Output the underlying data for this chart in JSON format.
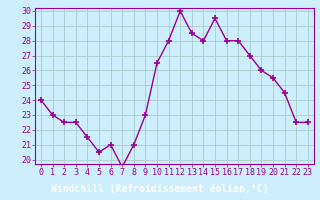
{
  "x": [
    0,
    1,
    2,
    3,
    4,
    5,
    6,
    7,
    8,
    9,
    10,
    11,
    12,
    13,
    14,
    15,
    16,
    17,
    18,
    19,
    20,
    21,
    22,
    23
  ],
  "y": [
    24,
    23,
    22.5,
    22.5,
    21.5,
    20.5,
    21,
    19.5,
    21,
    23,
    26.5,
    28,
    30,
    28.5,
    28,
    29.5,
    28,
    28,
    27,
    26,
    25.5,
    24.5,
    22.5,
    22.5
  ],
  "line_color": "#990099",
  "marker": "+",
  "marker_size": 5,
  "marker_lw": 1.2,
  "bg_color": "#cceeff",
  "grid_color": "#aacccc",
  "xlabel": "Windchill (Refroidissement éolien,°C)",
  "xlabel_color": "#ffffff",
  "xlabel_bg": "#880099",
  "ylabel_min": 20,
  "ylabel_max": 30,
  "yticks": [
    20,
    21,
    22,
    23,
    24,
    25,
    26,
    27,
    28,
    29,
    30
  ],
  "xticks": [
    0,
    1,
    2,
    3,
    4,
    5,
    6,
    7,
    8,
    9,
    10,
    11,
    12,
    13,
    14,
    15,
    16,
    17,
    18,
    19,
    20,
    21,
    22,
    23
  ],
  "tick_label_fontsize": 6,
  "xlabel_fontsize": 7,
  "line_width": 1.0
}
